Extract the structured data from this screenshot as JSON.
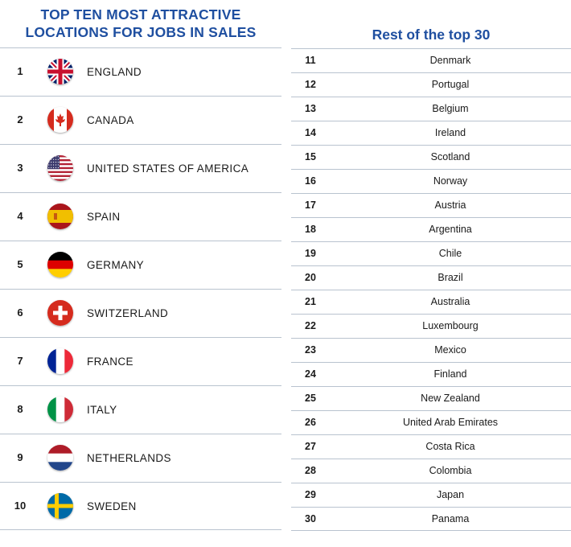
{
  "left_title_line1": "TOP TEN MOST ATTRACTIVE",
  "left_title_line2": "LOCATIONS FOR JOBS IN SALES",
  "right_title": "Rest of the top 30",
  "colors": {
    "title": "#1f4fa0",
    "divider": "#b9c3cf"
  },
  "top_ten": [
    {
      "rank": "1",
      "name": "ENGLAND",
      "flag": "uk-flag-icon"
    },
    {
      "rank": "2",
      "name": "CANADA",
      "flag": "canada-flag-icon"
    },
    {
      "rank": "3",
      "name": "UNITED STATES OF AMERICA",
      "flag": "usa-flag-icon"
    },
    {
      "rank": "4",
      "name": "SPAIN",
      "flag": "spain-flag-icon"
    },
    {
      "rank": "5",
      "name": "GERMANY",
      "flag": "germany-flag-icon"
    },
    {
      "rank": "6",
      "name": "SWITZERLAND",
      "flag": "switzerland-flag-icon"
    },
    {
      "rank": "7",
      "name": "FRANCE",
      "flag": "france-flag-icon"
    },
    {
      "rank": "8",
      "name": "ITALY",
      "flag": "italy-flag-icon"
    },
    {
      "rank": "9",
      "name": "NETHERLANDS",
      "flag": "netherlands-flag-icon"
    },
    {
      "rank": "10",
      "name": "SWEDEN",
      "flag": "sweden-flag-icon"
    }
  ],
  "rest": [
    {
      "rank": "11",
      "name": "Denmark"
    },
    {
      "rank": "12",
      "name": "Portugal"
    },
    {
      "rank": "13",
      "name": "Belgium"
    },
    {
      "rank": "14",
      "name": "Ireland"
    },
    {
      "rank": "15",
      "name": "Scotland"
    },
    {
      "rank": "16",
      "name": "Norway"
    },
    {
      "rank": "17",
      "name": "Austria"
    },
    {
      "rank": "18",
      "name": "Argentina"
    },
    {
      "rank": "19",
      "name": "Chile"
    },
    {
      "rank": "20",
      "name": "Brazil"
    },
    {
      "rank": "21",
      "name": "Australia"
    },
    {
      "rank": "22",
      "name": "Luxembourg"
    },
    {
      "rank": "23",
      "name": "Mexico"
    },
    {
      "rank": "24",
      "name": "Finland"
    },
    {
      "rank": "25",
      "name": "New Zealand"
    },
    {
      "rank": "26",
      "name": "United Arab Emirates"
    },
    {
      "rank": "27",
      "name": "Costa Rica"
    },
    {
      "rank": "28",
      "name": "Colombia"
    },
    {
      "rank": "29",
      "name": "Japan"
    },
    {
      "rank": "30",
      "name": "Panama"
    }
  ]
}
